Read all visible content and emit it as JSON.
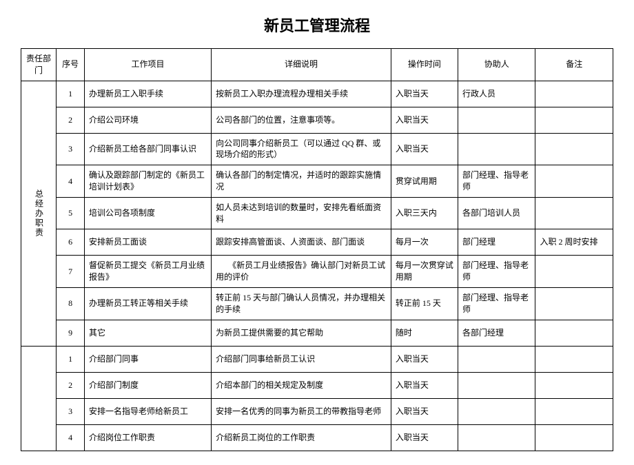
{
  "title": "新员工管理流程",
  "headers": {
    "dept": "责任部门",
    "seq": "序号",
    "item": "工作项目",
    "desc": "详细说明",
    "time": "操作时间",
    "helper": "协助人",
    "note": "备注"
  },
  "section1": {
    "dept": "总经办职责",
    "rows": [
      {
        "seq": "1",
        "item": "办理新员工入职手续",
        "desc": "按新员工入职办理流程办理相关手续",
        "time": "入职当天",
        "helper": "行政人员",
        "note": ""
      },
      {
        "seq": "2",
        "item": "介绍公司环境",
        "desc": "公司各部门的位置，注意事项等。",
        "time": "入职当天",
        "helper": "",
        "note": ""
      },
      {
        "seq": "3",
        "item": "介绍新员工给各部门同事认识",
        "desc": "向公司同事介绍新员工（可以通过 QQ 群、或现场介绍的形式）",
        "time": "入职当天",
        "helper": "",
        "note": ""
      },
      {
        "seq": "4",
        "item": "确认及跟踪部门制定的《新员工培训计划表》",
        "desc": "确认各部门的制定情况，并适时的跟踪实施情况",
        "time": "贯穿试用期",
        "helper": "部门经理、指导老师",
        "note": ""
      },
      {
        "seq": "5",
        "item": "培训公司各项制度",
        "desc": "如人员未达到培训的数量时，安排先看纸面资料",
        "time": "入职三天内",
        "helper": "各部门培训人员",
        "note": ""
      },
      {
        "seq": "6",
        "item": "安排新员工面谈",
        "desc": "跟踪安排高管面谈、人资面谈、部门面谈",
        "time": "每月一次",
        "helper": "部门经理",
        "note": "入职 2 周时安排"
      },
      {
        "seq": "7",
        "item": "督促新员工提交《新员工月业绩报告》",
        "desc": "　　《新员工月业绩报告》确认部门对新员工试用的评价",
        "time": "每月一次贯穿试用期",
        "helper": "部门经理、指导老师",
        "note": ""
      },
      {
        "seq": "8",
        "item": "办理新员工转正等相关手续",
        "desc": "转正前 15 天与部门确认人员情况，并办理相关的手续",
        "time": "转正前 15 天",
        "helper": "部门经理、指导老师",
        "note": ""
      },
      {
        "seq": "9",
        "item": "其它",
        "desc": "为新员工提供需要的其它帮助",
        "time": "随时",
        "helper": "各部门经理",
        "note": ""
      }
    ]
  },
  "section2": {
    "dept": "",
    "rows": [
      {
        "seq": "1",
        "item": "介绍部门同事",
        "desc": "介绍部门同事给新员工认识",
        "time": "入职当天",
        "helper": "",
        "note": ""
      },
      {
        "seq": "2",
        "item": "介绍部门制度",
        "desc": "介绍本部门的相关规定及制度",
        "time": "入职当天",
        "helper": "",
        "note": ""
      },
      {
        "seq": "3",
        "item": "安排一名指导老师给新员工",
        "desc": "安排一名优秀的同事为新员工的带教指导老师",
        "time": "入职当天",
        "helper": "",
        "note": ""
      },
      {
        "seq": "4",
        "item": "介绍岗位工作职责",
        "desc": "介绍新员工岗位的工作职责",
        "time": "入职当天",
        "helper": "",
        "note": ""
      }
    ]
  }
}
